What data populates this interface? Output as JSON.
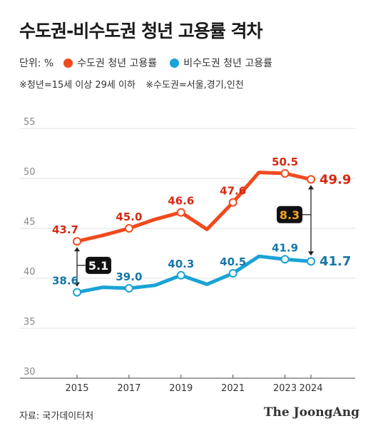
{
  "header": {
    "title": "수도권-비수도권 청년 고용률 격차"
  },
  "legend": {
    "unit": "단위: %",
    "items": [
      {
        "label": "수도권 청년 고용률",
        "color": "#f04a1e"
      },
      {
        "label": "비수도권 청년 고용률",
        "color": "#1aa3d6"
      }
    ]
  },
  "notes": [
    "※청년=15세 이상 29세 이하",
    "※수도권=서울,경기,인천"
  ],
  "chart_data": {
    "type": "line",
    "x": [
      2015,
      2016,
      2017,
      2018,
      2019,
      2020,
      2021,
      2022,
      2023,
      2024
    ],
    "x_tick_labels": [
      "2015",
      "2017",
      "2019",
      "2021",
      "2023",
      "2024"
    ],
    "x_tick_values": [
      2015,
      2017,
      2019,
      2021,
      2023,
      2024
    ],
    "ylim": [
      30,
      55
    ],
    "y_ticks": [
      30,
      35,
      40,
      45,
      50,
      55
    ],
    "grid": true,
    "series": [
      {
        "name": "수도권 청년 고용률",
        "color": "#f04a1e",
        "label_color": "#d42a14",
        "values": [
          43.7,
          44.3,
          45.0,
          45.9,
          46.6,
          44.9,
          47.6,
          50.6,
          50.5,
          49.9
        ],
        "marked": [
          {
            "x": 2015,
            "label": "43.7"
          },
          {
            "x": 2017,
            "label": "45.0"
          },
          {
            "x": 2019,
            "label": "46.6"
          },
          {
            "x": 2021,
            "label": "47.6"
          },
          {
            "x": 2023,
            "label": "50.5"
          },
          {
            "x": 2024,
            "label": "49.9",
            "bold": true
          }
        ]
      },
      {
        "name": "비수도권 청년 고용률",
        "color": "#1aa3d6",
        "label_color": "#1577a6",
        "values": [
          38.6,
          39.1,
          39.0,
          39.3,
          40.3,
          39.4,
          40.5,
          42.2,
          41.9,
          41.7
        ],
        "marked": [
          {
            "x": 2015,
            "label": "38.6"
          },
          {
            "x": 2017,
            "label": "39.0"
          },
          {
            "x": 2019,
            "label": "40.3"
          },
          {
            "x": 2021,
            "label": "40.5"
          },
          {
            "x": 2023,
            "label": "41.9"
          },
          {
            "x": 2024,
            "label": "41.7",
            "bold": true
          }
        ]
      }
    ],
    "annotations": [
      {
        "x": 2015,
        "from": 38.6,
        "to": 43.7,
        "label": "5.1",
        "text_color": "#ffffff"
      },
      {
        "x": 2024,
        "from": 41.7,
        "to": 49.9,
        "label": "8.3",
        "text_color": "#f5a623"
      }
    ]
  },
  "footer": {
    "source": "자료: 국가데이터처",
    "brand": "The JoongAng"
  }
}
